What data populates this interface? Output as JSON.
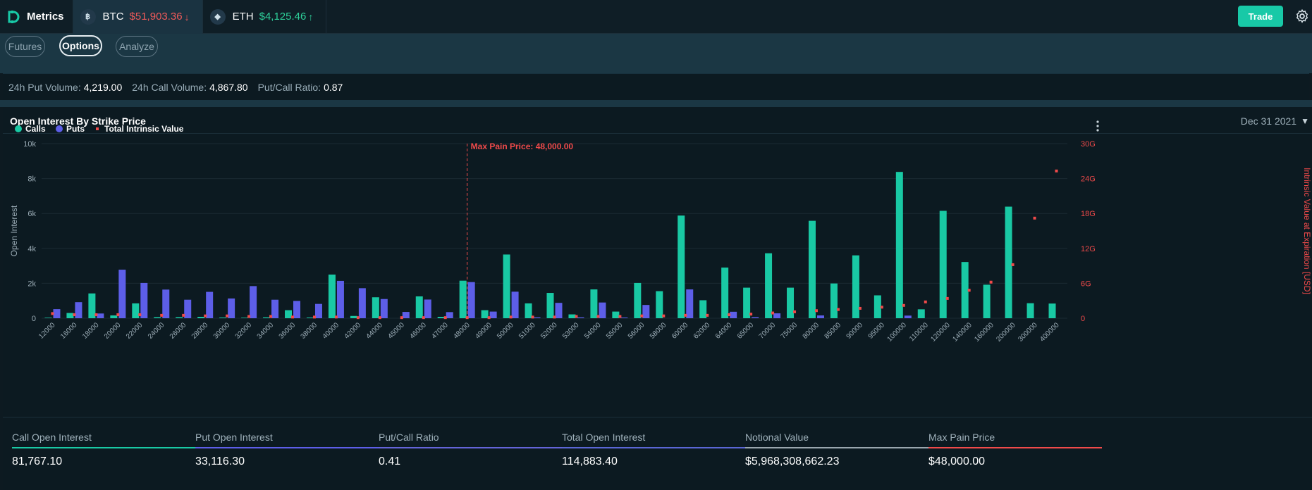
{
  "header": {
    "app_name": "Metrics",
    "tickers": [
      {
        "symbol": "BTC",
        "coin_icon": "bitcoin-icon",
        "price": "$51,903.36",
        "direction": "down"
      },
      {
        "symbol": "ETH",
        "coin_icon": "ethereum-icon",
        "price": "$4,125.46",
        "direction": "up"
      }
    ],
    "trade_label": "Trade"
  },
  "tabs": [
    {
      "label": "Futures",
      "active": false
    },
    {
      "label": "Options",
      "active": true
    },
    {
      "label": "Analyze",
      "active": false
    }
  ],
  "summary": [
    {
      "label": "24h Put Volume:",
      "value": "4,219.00"
    },
    {
      "label": "24h Call Volume:",
      "value": "4,867.80"
    },
    {
      "label": "Put/Call Ratio:",
      "value": "0.87"
    }
  ],
  "card": {
    "title": "Open Interest By Strike Price",
    "expiry": "Dec 31 2021"
  },
  "colors": {
    "calls": "#19c9a4",
    "puts": "#5d5ee8",
    "intrinsic": "#f04a4a",
    "accent": "#18c9a7"
  },
  "chart_data": {
    "type": "bar",
    "legend": [
      "Calls",
      "Puts",
      "Total Intrinsic Value"
    ],
    "legend_position": "top-left",
    "ylabel": "Open Interest",
    "y2label": "Intrinsic Value at Expiration [USD]",
    "ylim": [
      0,
      10000
    ],
    "y_ticks": [
      "0",
      "2k",
      "4k",
      "6k",
      "8k",
      "10k"
    ],
    "y2lim": [
      0,
      30
    ],
    "y2_ticks": [
      "0",
      "6G",
      "12G",
      "18G",
      "24G",
      "30G"
    ],
    "annotation": {
      "label": "Max Pain Price: 48,000.00",
      "category": "48000"
    },
    "categories": [
      "12000",
      "16000",
      "18000",
      "20000",
      "22000",
      "24000",
      "26000",
      "28000",
      "30000",
      "32000",
      "34000",
      "36000",
      "38000",
      "40000",
      "42000",
      "44000",
      "45000",
      "46000",
      "47000",
      "48000",
      "49000",
      "50000",
      "51000",
      "52000",
      "53000",
      "54000",
      "55000",
      "56000",
      "58000",
      "60000",
      "62000",
      "64000",
      "65000",
      "70000",
      "75000",
      "80000",
      "85000",
      "90000",
      "95000",
      "100000",
      "110000",
      "120000",
      "140000",
      "160000",
      "200000",
      "300000",
      "400000"
    ],
    "series": [
      {
        "name": "Calls",
        "values": [
          30,
          300,
          1420,
          160,
          850,
          60,
          60,
          80,
          40,
          30,
          50,
          460,
          40,
          2500,
          130,
          1200,
          0,
          1250,
          80,
          2150,
          460,
          3650,
          850,
          1450,
          220,
          1650,
          380,
          2020,
          1550,
          5880,
          1030,
          2900,
          1750,
          3720,
          1750,
          5580,
          1990,
          3600,
          1310,
          8380,
          510,
          6150,
          3220,
          1920,
          6390,
          860,
          840
        ]
      },
      {
        "name": "Puts",
        "values": [
          520,
          920,
          270,
          2780,
          2020,
          1640,
          1060,
          1510,
          1130,
          1840,
          1060,
          990,
          820,
          2140,
          1720,
          1100,
          360,
          1070,
          350,
          2070,
          380,
          1520,
          50,
          880,
          50,
          900,
          40,
          760,
          0,
          1650,
          0,
          370,
          60,
          280,
          0,
          160,
          0,
          0,
          0,
          150,
          0,
          0,
          0,
          0,
          0,
          0,
          0
        ]
      },
      {
        "name": "Total Intrinsic Value",
        "values": [
          0.8,
          0.6,
          0.6,
          0.6,
          0.6,
          0.5,
          0.5,
          0.4,
          0.4,
          0.3,
          0.3,
          0.2,
          0.2,
          0.2,
          0.1,
          0.1,
          0.1,
          0.1,
          0.1,
          0.1,
          0.1,
          0.2,
          0.2,
          0.2,
          0.3,
          0.3,
          0.3,
          0.4,
          0.4,
          0.5,
          0.5,
          0.6,
          0.7,
          0.9,
          1.1,
          1.3,
          1.5,
          1.7,
          1.9,
          2.2,
          2.8,
          3.4,
          4.8,
          6.2,
          9.2,
          17.2,
          25.3
        ]
      }
    ]
  },
  "metrics": [
    {
      "label": "Call Open Interest",
      "value": "81,767.10",
      "color": "#19c9a4"
    },
    {
      "label": "Put Open Interest",
      "value": "33,116.30",
      "color": "#5d5ee8"
    },
    {
      "label": "Put/Call Ratio",
      "value": "0.41",
      "color": "#6464d8"
    },
    {
      "label": "Total Open Interest",
      "value": "114,883.40",
      "color": "#5a66d4"
    },
    {
      "label": "Notional Value",
      "value": "$5,968,308,662.23",
      "color": "#9aa6ae"
    },
    {
      "label": "Max Pain Price",
      "value": "$48,000.00",
      "color": "#f04a4a"
    }
  ]
}
